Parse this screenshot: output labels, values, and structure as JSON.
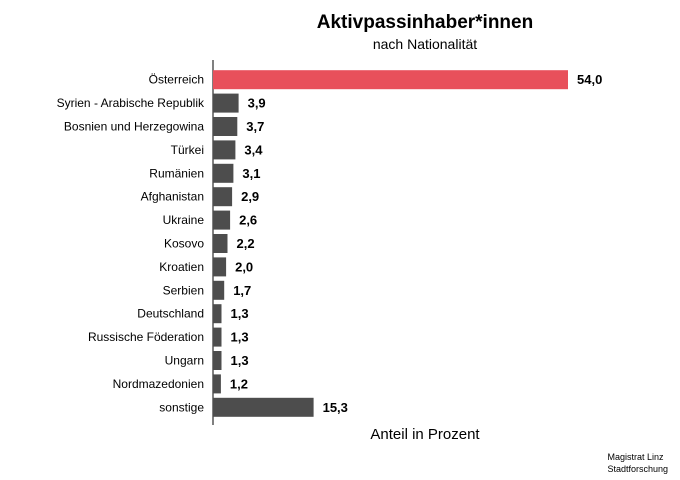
{
  "chart_data": {
    "type": "bar",
    "orientation": "horizontal",
    "title": "Aktivpassinhaber*innen",
    "subtitle": "nach Nationalität",
    "xlabel": "Anteil in Prozent",
    "categories": [
      "Österreich",
      "Syrien - Arabische Republik",
      "Bosnien und Herzegowina",
      "Türkei",
      "Rumänien",
      "Afghanistan",
      "Ukraine",
      "Kosovo",
      "Kroatien",
      "Serbien",
      "Deutschland",
      "Russische Föderation",
      "Ungarn",
      "Nordmazedonien",
      "sonstige"
    ],
    "values": [
      54.0,
      3.9,
      3.7,
      3.4,
      3.1,
      2.9,
      2.6,
      2.2,
      2.0,
      1.7,
      1.3,
      1.3,
      1.3,
      1.2,
      15.3
    ],
    "value_labels": [
      "54,0",
      "3,9",
      "3,7",
      "3,4",
      "3,1",
      "2,9",
      "2,6",
      "2,2",
      "2,0",
      "1,7",
      "1,3",
      "1,3",
      "1,3",
      "1,2",
      "15,3"
    ],
    "xlim": [
      0,
      54
    ],
    "grid": false,
    "legend": "none",
    "colors": {
      "highlight": "#e8505b",
      "default": "#4d4d4d"
    },
    "highlight_index": 0
  },
  "footer": {
    "line1": "Magistrat Linz",
    "line2": "Stadtforschung"
  }
}
